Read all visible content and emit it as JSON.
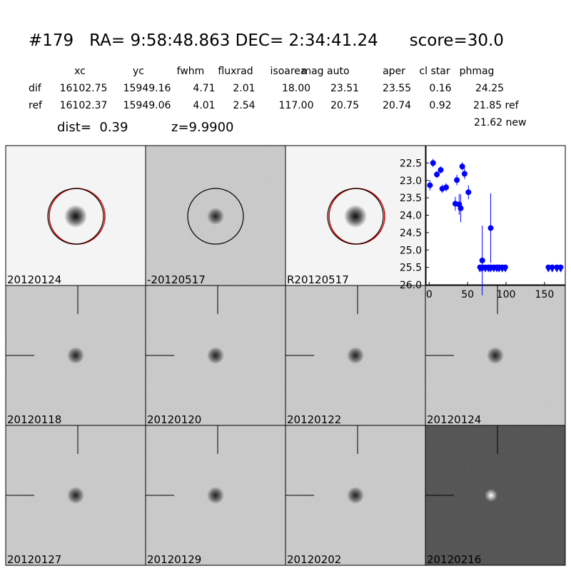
{
  "header": {
    "title": "#179   RA= 9:58:48.863 DEC= 2:34:41.24      score=30.0",
    "columns": [
      "xc",
      "yc",
      "fwhm",
      "fluxrad",
      "isoarea",
      "mag auto",
      "aper",
      "cl star",
      "phmag"
    ],
    "rows": [
      {
        "label": "dif",
        "cells": [
          "16102.75",
          "15949.16",
          "4.71",
          "2.01",
          "18.00",
          "23.51",
          "23.55",
          "0.16",
          "24.25"
        ]
      },
      {
        "label": "ref",
        "cells": [
          "16102.37",
          "15949.06",
          "4.01",
          "2.54",
          "117.00",
          "20.75",
          "20.74",
          "0.92",
          "21.85 ref"
        ]
      }
    ],
    "extra": "21.62 new",
    "dist": "dist=  0.39",
    "z": "z=9.9900"
  },
  "panels": [
    {
      "label": "20120124"
    },
    {
      "label": "-20120517"
    },
    {
      "label": "R20120517"
    },
    {
      "label": "20120118"
    },
    {
      "label": "20120120"
    },
    {
      "label": "20120122"
    },
    {
      "label": "20120124",
      "color": "#ff0000"
    },
    {
      "label": "20120127"
    },
    {
      "label": "20120129"
    },
    {
      "label": "20120202"
    },
    {
      "label": "20120216"
    }
  ],
  "light_curve": {
    "type": "scatter",
    "color": "#0000ff",
    "x": [
      1,
      5,
      10,
      15,
      17,
      22,
      34,
      36,
      39,
      41,
      43,
      46,
      51,
      69,
      80
    ],
    "values": [
      23.14,
      22.5,
      22.83,
      22.7,
      23.24,
      23.2,
      23.67,
      22.99,
      23.69,
      23.8,
      22.6,
      22.81,
      23.34,
      25.3,
      24.37
    ],
    "errors": [
      0.15,
      0.12,
      0.1,
      0.1,
      0.12,
      0.12,
      0.2,
      0.15,
      0.3,
      0.4,
      0.12,
      0.15,
      0.2,
      1.0,
      1.0
    ],
    "limits": {
      "x": [
        66,
        69,
        73,
        77,
        80,
        84,
        88,
        91,
        95,
        99,
        155,
        160,
        166,
        171
      ],
      "values": [
        25.5,
        25.5,
        25.5,
        25.5,
        25.5,
        25.5,
        25.5,
        25.5,
        25.5,
        25.5,
        25.5,
        25.5,
        25.5,
        25.5
      ]
    },
    "xlim": [
      -4,
      177
    ],
    "xticks": [
      0,
      50,
      100,
      150
    ],
    "ylim": [
      26,
      22
    ],
    "yticks": [
      22.5,
      {
        "value": 23,
        "label": "23.0"
      },
      23.5,
      {
        "value": 24,
        "label": "24.0"
      },
      24.5,
      {
        "value": 25,
        "label": "25.0"
      },
      25.5,
      {
        "value": 26,
        "label": "26.0"
      }
    ]
  }
}
